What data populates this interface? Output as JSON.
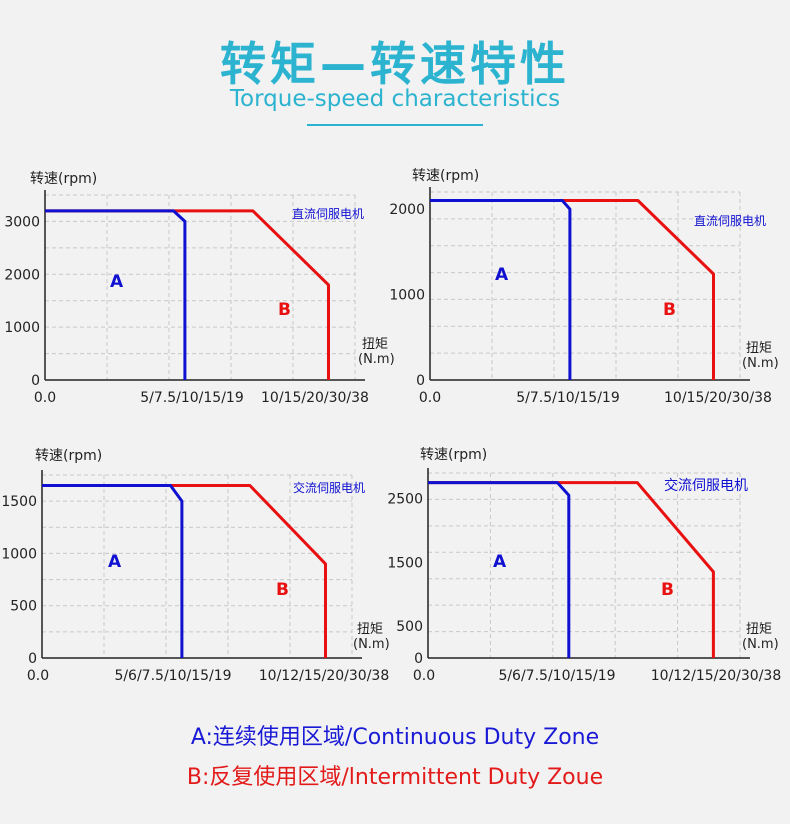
{
  "header": {
    "title_cn": "转矩—转速特性",
    "title_en": "Torque-speed characteristics"
  },
  "colors": {
    "continuous": "#1010d0",
    "intermittent": "#e81010",
    "title": "#2bb3cf",
    "grid": "#c8c8c8"
  },
  "legend": {
    "a": "A:连续使用区域/Continuous Duty Zone",
    "b": "B:反复使用区域/lntermittent Duty Zoue"
  },
  "chart_data": [
    {
      "type": "line",
      "ylabel": "转速(rpm)",
      "xlabel_line1": "扭矩",
      "xlabel_line2": "(N.m)",
      "motor_label": "直流伺服电机",
      "yticks": [
        "0",
        "1000",
        "2000",
        "3000"
      ],
      "xticks": [
        "0.0",
        "5/7.5/10/15/19",
        "10/15/20/30/38"
      ],
      "ylim": [
        0,
        3500
      ],
      "zone_a": "A",
      "zone_b": "B",
      "continuous_curve": [
        [
          0,
          3200
        ],
        [
          1.7,
          3200
        ],
        [
          1.85,
          3000
        ],
        [
          1.85,
          0
        ]
      ],
      "intermittent_curve": [
        [
          0,
          3200
        ],
        [
          2.75,
          3200
        ],
        [
          3.75,
          1800
        ],
        [
          3.75,
          0
        ]
      ]
    },
    {
      "type": "line",
      "ylabel": "转速(rpm)",
      "xlabel_line1": "扭矩",
      "xlabel_line2": "(N.m)",
      "motor_label": "直流伺服电机",
      "yticks": [
        "0",
        "1000",
        "2000"
      ],
      "xticks": [
        "0.0",
        "5/7.5/10/15/19",
        "10/15/20/30/38"
      ],
      "ylim": [
        0,
        2200
      ],
      "zone_a": "A",
      "zone_b": "B",
      "continuous_curve": [
        [
          0,
          2100
        ],
        [
          1.75,
          2100
        ],
        [
          1.85,
          2000
        ],
        [
          1.85,
          0
        ]
      ],
      "intermittent_curve": [
        [
          0,
          2100
        ],
        [
          2.75,
          2100
        ],
        [
          3.75,
          1240
        ],
        [
          3.75,
          0
        ]
      ]
    },
    {
      "type": "line",
      "ylabel": "转速(rpm)",
      "xlabel_line1": "扭矩",
      "xlabel_line2": "(N.m)",
      "motor_label": "交流伺服电机",
      "yticks": [
        "0",
        "500",
        "1000",
        "1500"
      ],
      "xticks": [
        "0.0",
        "5/6/7.5/10/15/19",
        "10/12/15/20/30/38"
      ],
      "ylim": [
        0,
        1750
      ],
      "zone_a": "A",
      "zone_b": "B",
      "continuous_curve": [
        [
          0,
          1650
        ],
        [
          1.7,
          1650
        ],
        [
          1.85,
          1500
        ],
        [
          1.85,
          0
        ]
      ],
      "intermittent_curve": [
        [
          0,
          1650
        ],
        [
          2.75,
          1650
        ],
        [
          3.75,
          900
        ],
        [
          3.75,
          0
        ]
      ]
    },
    {
      "type": "line",
      "ylabel": "转速(rpm)",
      "xlabel_line1": "扭矩",
      "xlabel_line2": "(N.m)",
      "motor_label": "交流伺服电机",
      "yticks": [
        "0",
        "500",
        "1500",
        "2500"
      ],
      "xticks": [
        "0.0",
        "5/6/7.5/10/15/19",
        "10/12/15/20/30/38"
      ],
      "ylim": [
        0,
        2900
      ],
      "zone_a": "A",
      "zone_b": "B",
      "continuous_curve": [
        [
          0,
          2750
        ],
        [
          1.7,
          2750
        ],
        [
          1.85,
          2550
        ],
        [
          1.85,
          0
        ]
      ],
      "intermittent_curve": [
        [
          0,
          2750
        ],
        [
          2.75,
          2750
        ],
        [
          3.75,
          1350
        ],
        [
          3.75,
          0
        ]
      ]
    }
  ]
}
